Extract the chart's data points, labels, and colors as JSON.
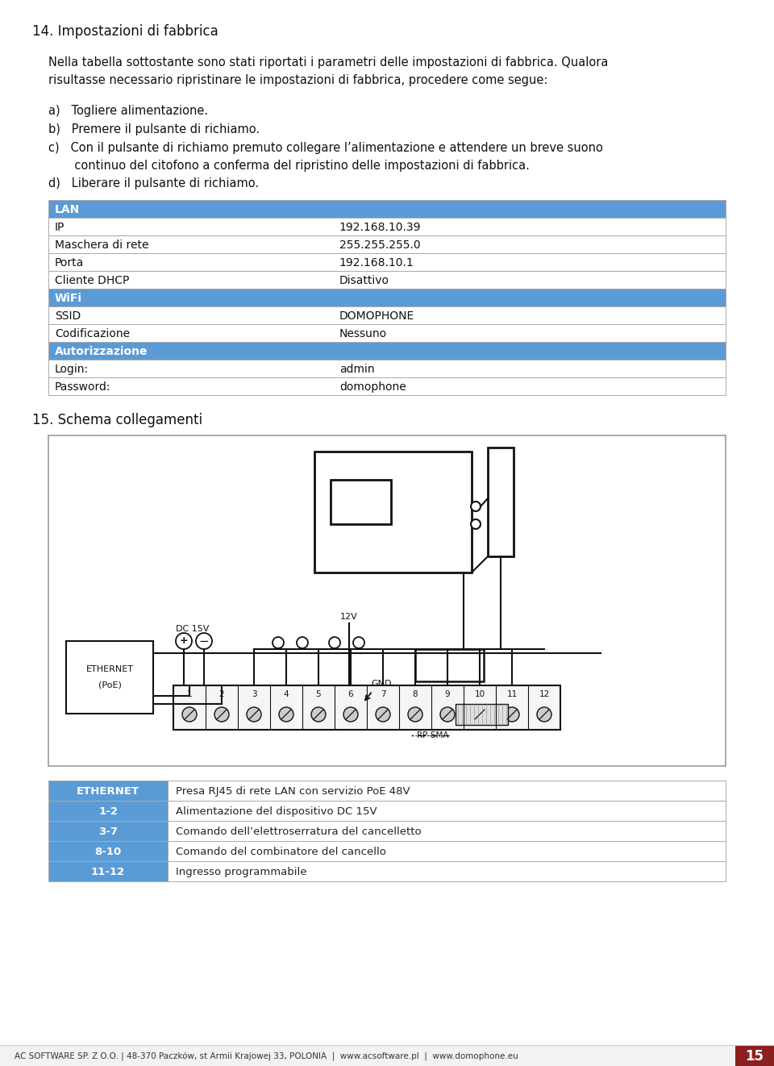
{
  "page_bg": "#ffffff",
  "header_number": "14.",
  "header_title": "Impostazioni di fabbrica",
  "intro_line1": "Nella tabella sottostante sono stati riportati i parametri delle impostazioni di fabbrica. Qualora",
  "intro_line2": "risultasse necessario ripristinare le impostazioni di fabbrica, procedere come segue:",
  "step_a": "a)   Togliere alimentazione.",
  "step_b": "b)   Premere il pulsante di richiamo.",
  "step_c1": "c)   Con il pulsante di richiamo premuto collegare l’alimentazione e attendere un breve suono",
  "step_c2": "       continuo del citofono a conferma del ripristino delle impostazioni di fabbrica.",
  "step_d": "d)   Liberare il pulsante di richiamo.",
  "table_header_color": "#5b9bd5",
  "table_header_text_color": "#ffffff",
  "table_border_color": "#aaaaaa",
  "table_sections": [
    {
      "header": "LAN",
      "rows": [
        [
          "IP",
          "192.168.10.39"
        ],
        [
          "Maschera di rete",
          "255.255.255.0"
        ],
        [
          "Porta",
          "192.168.10.1"
        ],
        [
          "Cliente DHCP",
          "Disattivo"
        ]
      ]
    },
    {
      "header": "WiFi",
      "rows": [
        [
          "SSID",
          "DOMOPHONE"
        ],
        [
          "Codificazione",
          "Nessuno"
        ]
      ]
    },
    {
      "header": "Autorizzazione",
      "rows": [
        [
          "Login:",
          "admin"
        ],
        [
          "Password:",
          "domophone"
        ]
      ]
    }
  ],
  "section15_title": "15. Schema collegamenti",
  "bottom_table": [
    {
      "label": "ETHERNET",
      "desc": "Presa RJ45 di rete LAN con servizio PoE 48V"
    },
    {
      "label": "1-2",
      "desc": "Alimentazione del dispositivo DC 15V"
    },
    {
      "label": "3-7",
      "desc": "Comando dell’elettroserratura del cancelletto"
    },
    {
      "label": "8-10",
      "desc": "Comando del combinatore del cancello"
    },
    {
      "label": "11-12",
      "desc": "Ingresso programmabile"
    }
  ],
  "footer_text": "AC SOFTWARE SP. Z O.O. | 48-370 Paczków, st Armii Krajowej 33, POLONIA  |  www.acsoftware.pl  |  www.domophone.eu",
  "footer_page": "15",
  "footer_page_bg": "#8b2020"
}
